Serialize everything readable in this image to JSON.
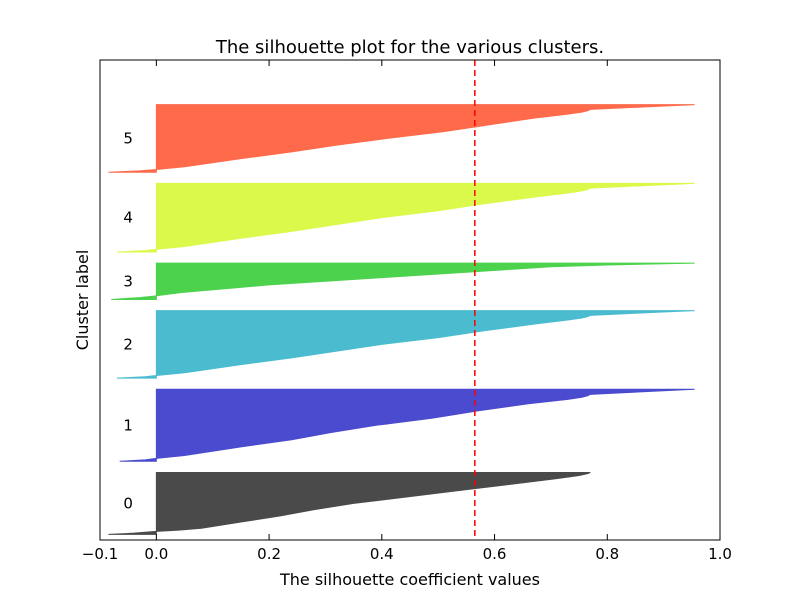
{
  "chart_data": {
    "type": "area",
    "title": "The silhouette plot for the various clusters.",
    "xlabel": "The silhouette coefficient values",
    "ylabel": "Cluster label",
    "xlim": [
      -0.1,
      1.0
    ],
    "ylim": [
      0,
      860
    ],
    "xticks": [
      {
        "value": -0.1,
        "label": "−0.1"
      },
      {
        "value": 0.0,
        "label": "0.0"
      },
      {
        "value": 0.2,
        "label": "0.2"
      },
      {
        "value": 0.4,
        "label": "0.4"
      },
      {
        "value": 0.6,
        "label": "0.6"
      },
      {
        "value": 0.8,
        "label": "0.8"
      },
      {
        "value": 1.0,
        "label": "1.0"
      }
    ],
    "yticks": [],
    "grid": false,
    "average_silhouette": 0.565,
    "average_line_color": "#ff0000",
    "clusters": [
      {
        "label": "0",
        "color": "#4a4a4a",
        "y_lower": 10,
        "y_upper": 121,
        "profile": [
          [
            0.0,
            -0.085
          ],
          [
            0.02,
            -0.04
          ],
          [
            0.05,
            0.0
          ],
          [
            0.07,
            0.04
          ],
          [
            0.1,
            0.08
          ],
          [
            0.2,
            0.15
          ],
          [
            0.3,
            0.22
          ],
          [
            0.4,
            0.28
          ],
          [
            0.5,
            0.35
          ],
          [
            0.6,
            0.44
          ],
          [
            0.7,
            0.53
          ],
          [
            0.8,
            0.62
          ],
          [
            0.9,
            0.71
          ],
          [
            0.95,
            0.75
          ],
          [
            0.98,
            0.765
          ],
          [
            1.0,
            0.77
          ]
        ]
      },
      {
        "label": "1",
        "color": "#4b4bcf",
        "y_lower": 141,
        "y_upper": 270,
        "profile": [
          [
            0.0,
            -0.065
          ],
          [
            0.02,
            -0.02
          ],
          [
            0.04,
            0.0
          ],
          [
            0.08,
            0.05
          ],
          [
            0.2,
            0.15
          ],
          [
            0.3,
            0.24
          ],
          [
            0.4,
            0.31
          ],
          [
            0.5,
            0.39
          ],
          [
            0.6,
            0.49
          ],
          [
            0.7,
            0.57
          ],
          [
            0.8,
            0.66
          ],
          [
            0.86,
            0.73
          ],
          [
            0.89,
            0.755
          ],
          [
            0.91,
            0.765
          ],
          [
            0.93,
            0.77
          ],
          [
            1.0,
            0.955
          ]
        ]
      },
      {
        "label": "2",
        "color": "#4bbccf",
        "y_lower": 290,
        "y_upper": 411,
        "profile": [
          [
            0.0,
            -0.07
          ],
          [
            0.02,
            -0.02
          ],
          [
            0.04,
            0.0
          ],
          [
            0.08,
            0.05
          ],
          [
            0.2,
            0.15
          ],
          [
            0.3,
            0.24
          ],
          [
            0.4,
            0.32
          ],
          [
            0.5,
            0.4
          ],
          [
            0.6,
            0.5
          ],
          [
            0.7,
            0.58
          ],
          [
            0.8,
            0.67
          ],
          [
            0.86,
            0.73
          ],
          [
            0.89,
            0.755
          ],
          [
            0.91,
            0.765
          ],
          [
            0.93,
            0.77
          ],
          [
            1.0,
            0.955
          ]
        ]
      },
      {
        "label": "3",
        "color": "#4cd24c",
        "y_lower": 431,
        "y_upper": 496,
        "profile": [
          [
            0.0,
            -0.08
          ],
          [
            0.05,
            -0.03
          ],
          [
            0.1,
            0.0
          ],
          [
            0.2,
            0.05
          ],
          [
            0.4,
            0.2
          ],
          [
            0.6,
            0.4
          ],
          [
            0.75,
            0.55
          ],
          [
            0.85,
            0.65
          ],
          [
            0.9,
            0.7
          ],
          [
            0.95,
            0.8
          ],
          [
            1.0,
            0.955
          ]
        ]
      },
      {
        "label": "4",
        "color": "#dbf94b",
        "y_lower": 516,
        "y_upper": 639,
        "profile": [
          [
            0.0,
            -0.07
          ],
          [
            0.02,
            -0.02
          ],
          [
            0.04,
            0.0
          ],
          [
            0.08,
            0.05
          ],
          [
            0.2,
            0.15
          ],
          [
            0.3,
            0.24
          ],
          [
            0.4,
            0.32
          ],
          [
            0.5,
            0.4
          ],
          [
            0.6,
            0.5
          ],
          [
            0.7,
            0.58
          ],
          [
            0.8,
            0.67
          ],
          [
            0.86,
            0.73
          ],
          [
            0.89,
            0.755
          ],
          [
            0.91,
            0.765
          ],
          [
            0.93,
            0.77
          ],
          [
            1.0,
            0.955
          ]
        ]
      },
      {
        "label": "5",
        "color": "#ff6a4b",
        "y_lower": 659,
        "y_upper": 780,
        "profile": [
          [
            0.0,
            -0.085
          ],
          [
            0.02,
            -0.03
          ],
          [
            0.04,
            0.0
          ],
          [
            0.08,
            0.05
          ],
          [
            0.2,
            0.15
          ],
          [
            0.3,
            0.24
          ],
          [
            0.4,
            0.32
          ],
          [
            0.5,
            0.41
          ],
          [
            0.6,
            0.51
          ],
          [
            0.7,
            0.59
          ],
          [
            0.8,
            0.67
          ],
          [
            0.86,
            0.73
          ],
          [
            0.89,
            0.755
          ],
          [
            0.91,
            0.765
          ],
          [
            0.93,
            0.77
          ],
          [
            1.0,
            0.955
          ]
        ]
      }
    ]
  }
}
